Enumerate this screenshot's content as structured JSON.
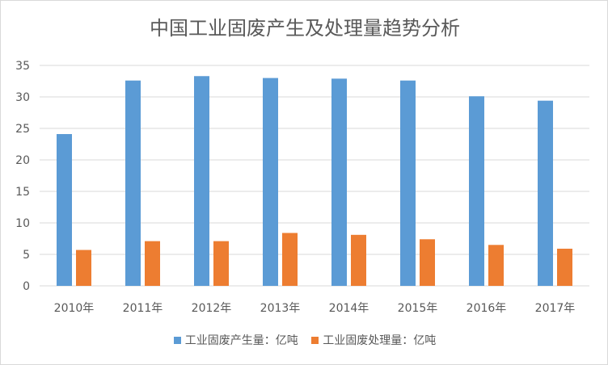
{
  "chart_data": {
    "type": "bar",
    "title": "中国工业固废产生及处理量趋势分析",
    "categories": [
      "2010年",
      "2011年",
      "2012年",
      "2013年",
      "2014年",
      "2015年",
      "2016年",
      "2017年"
    ],
    "series": [
      {
        "name": "工业固废产生量：亿吨",
        "color": "#5b9bd5",
        "values": [
          24.1,
          32.6,
          33.3,
          33.0,
          32.9,
          32.6,
          30.1,
          29.4
        ]
      },
      {
        "name": "工业固废处理量：亿吨",
        "color": "#ed7d31",
        "values": [
          5.7,
          7.1,
          7.1,
          8.4,
          8.1,
          7.4,
          6.5,
          5.9
        ]
      }
    ],
    "yticks": [
      "0",
      "5",
      "10",
      "15",
      "20",
      "25",
      "30",
      "35"
    ],
    "ylim": [
      0,
      35
    ],
    "grid": true,
    "legend": "bottom"
  }
}
